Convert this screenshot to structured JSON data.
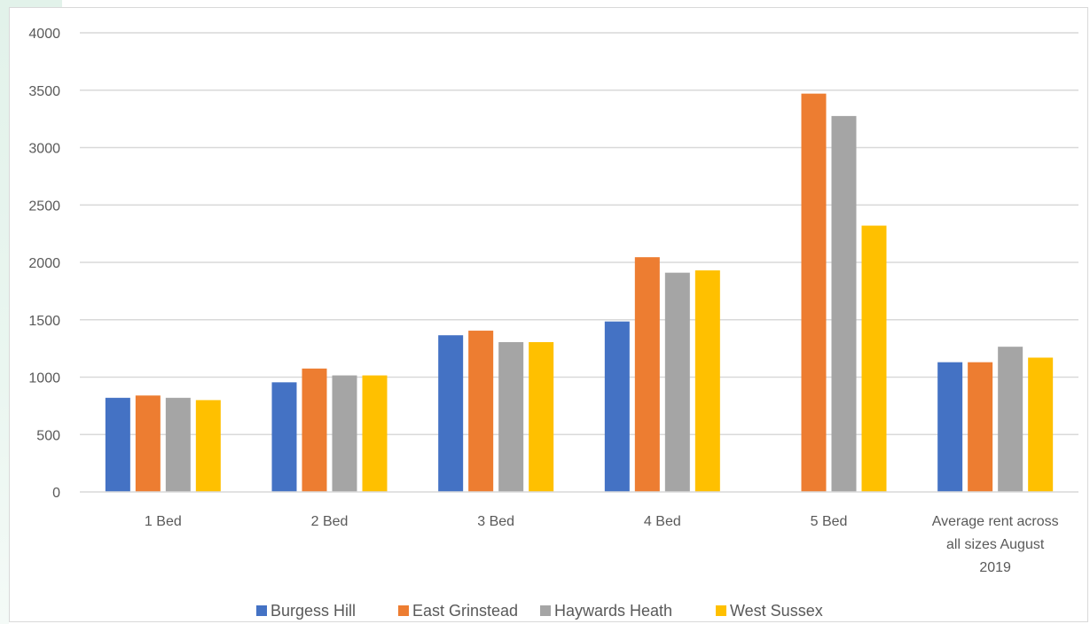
{
  "chart_data": {
    "type": "bar",
    "title": "",
    "xlabel": "",
    "ylabel": "",
    "ylim": [
      0,
      4000
    ],
    "yticks": [
      0,
      500,
      1000,
      1500,
      2000,
      2500,
      3000,
      3500,
      4000
    ],
    "grid": true,
    "legend_position": "bottom",
    "categories": [
      [
        "1 Bed"
      ],
      [
        "2 Bed"
      ],
      [
        "3 Bed"
      ],
      [
        "4 Bed"
      ],
      [
        "5 Bed"
      ],
      [
        "Average rent across",
        "all sizes August",
        "2019"
      ]
    ],
    "series": [
      {
        "name": "Burgess Hill",
        "color": "#4472c4",
        "values": [
          820,
          955,
          1365,
          1485,
          null,
          1130
        ]
      },
      {
        "name": "East Grinstead",
        "color": "#ed7d31",
        "values": [
          840,
          1075,
          1405,
          2045,
          3470,
          1130
        ]
      },
      {
        "name": "Haywards Heath",
        "color": "#a5a5a5",
        "values": [
          820,
          1015,
          1305,
          1910,
          3275,
          1265
        ]
      },
      {
        "name": "West Sussex",
        "color": "#ffc000",
        "values": [
          800,
          1015,
          1305,
          1930,
          2320,
          1170
        ]
      }
    ]
  }
}
